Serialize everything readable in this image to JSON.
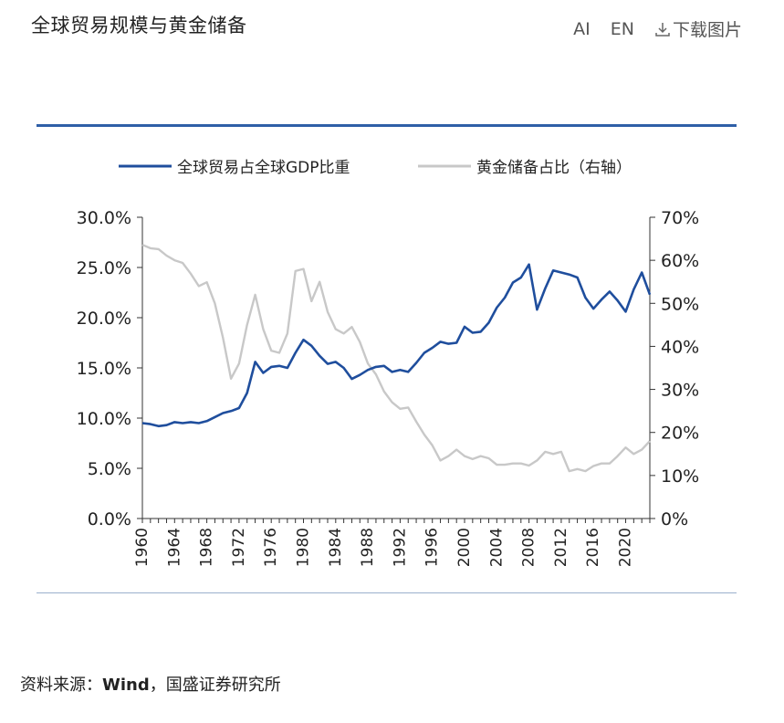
{
  "header": {
    "title": "全球贸易规模与黄金储备",
    "ai_label": "AI",
    "en_label": "EN",
    "download_label": "下载图片"
  },
  "source": {
    "prefix": "资料来源：",
    "name": "Wind",
    "suffix": "，国盛证券研究所"
  },
  "colors": {
    "trade_line": "#1f4e9d",
    "gold_line": "#c8c8c8",
    "rule": "#2f5fa7"
  },
  "chart_data": {
    "type": "line",
    "legend_position": "top",
    "grid": false,
    "x": [
      1960,
      1961,
      1962,
      1963,
      1964,
      1965,
      1966,
      1967,
      1968,
      1969,
      1970,
      1971,
      1972,
      1973,
      1974,
      1975,
      1976,
      1977,
      1978,
      1979,
      1980,
      1981,
      1982,
      1983,
      1984,
      1985,
      1986,
      1987,
      1988,
      1989,
      1990,
      1991,
      1992,
      1993,
      1994,
      1995,
      1996,
      1997,
      1998,
      1999,
      2000,
      2001,
      2002,
      2003,
      2004,
      2005,
      2006,
      2007,
      2008,
      2009,
      2010,
      2011,
      2012,
      2013,
      2014,
      2015,
      2016,
      2017,
      2018,
      2019,
      2020,
      2021,
      2022,
      2023
    ],
    "x_ticks": [
      "1960",
      "1964",
      "1968",
      "1972",
      "1976",
      "1980",
      "1984",
      "1988",
      "1992",
      "1996",
      "2000",
      "2004",
      "2008",
      "2012",
      "2016",
      "2020"
    ],
    "x_tick_values": [
      1960,
      1964,
      1968,
      1972,
      1976,
      1980,
      1984,
      1988,
      1992,
      1996,
      2000,
      2004,
      2008,
      2012,
      2016,
      2020
    ],
    "y_left": {
      "ylim": [
        0,
        30
      ],
      "ticks": [
        "0.0%",
        "5.0%",
        "10.0%",
        "15.0%",
        "20.0%",
        "25.0%",
        "30.0%"
      ],
      "tick_values": [
        0,
        5,
        10,
        15,
        20,
        25,
        30
      ]
    },
    "y_right": {
      "ylim": [
        0,
        70
      ],
      "ticks": [
        "0%",
        "10%",
        "20%",
        "30%",
        "40%",
        "50%",
        "60%",
        "70%"
      ],
      "tick_values": [
        0,
        10,
        20,
        30,
        40,
        50,
        60,
        70
      ]
    },
    "series": [
      {
        "name": "全球贸易占全球GDP比重",
        "axis": "left",
        "values": [
          9.5,
          9.4,
          9.2,
          9.3,
          9.6,
          9.5,
          9.6,
          9.5,
          9.7,
          10.1,
          10.5,
          10.7,
          11.0,
          12.5,
          15.6,
          14.5,
          15.1,
          15.2,
          15.0,
          16.5,
          17.8,
          17.2,
          16.2,
          15.4,
          15.6,
          15.0,
          13.9,
          14.3,
          14.8,
          15.1,
          15.2,
          14.6,
          14.8,
          14.6,
          15.5,
          16.5,
          17.0,
          17.6,
          17.4,
          17.5,
          19.1,
          18.5,
          18.6,
          19.5,
          21.0,
          22.0,
          23.5,
          24.0,
          25.3,
          20.8,
          22.9,
          24.7,
          24.5,
          24.3,
          24.0,
          22.0,
          20.9,
          21.8,
          22.6,
          21.7,
          20.6,
          22.8,
          24.5,
          22.3
        ]
      },
      {
        "name": "黄金储备占比（右轴）",
        "axis": "right",
        "values": [
          63.6,
          62.8,
          62.6,
          61.1,
          60.0,
          59.4,
          56.9,
          54.0,
          54.9,
          50.0,
          42.0,
          32.5,
          36.0,
          45.0,
          52.0,
          44.0,
          39.0,
          38.5,
          43.0,
          57.5,
          58.0,
          50.5,
          55.0,
          48.0,
          44.0,
          43.0,
          44.5,
          41.0,
          36.0,
          33.5,
          29.5,
          27.0,
          25.5,
          25.8,
          22.5,
          19.5,
          17.0,
          13.5,
          14.5,
          16.0,
          14.5,
          13.8,
          14.5,
          14.0,
          12.5,
          12.5,
          12.8,
          12.8,
          12.3,
          13.5,
          15.5,
          15.0,
          15.5,
          11.0,
          11.5,
          11.0,
          12.2,
          12.8,
          12.8,
          14.5,
          16.5,
          15.0,
          16.0,
          18.0
        ]
      }
    ]
  }
}
